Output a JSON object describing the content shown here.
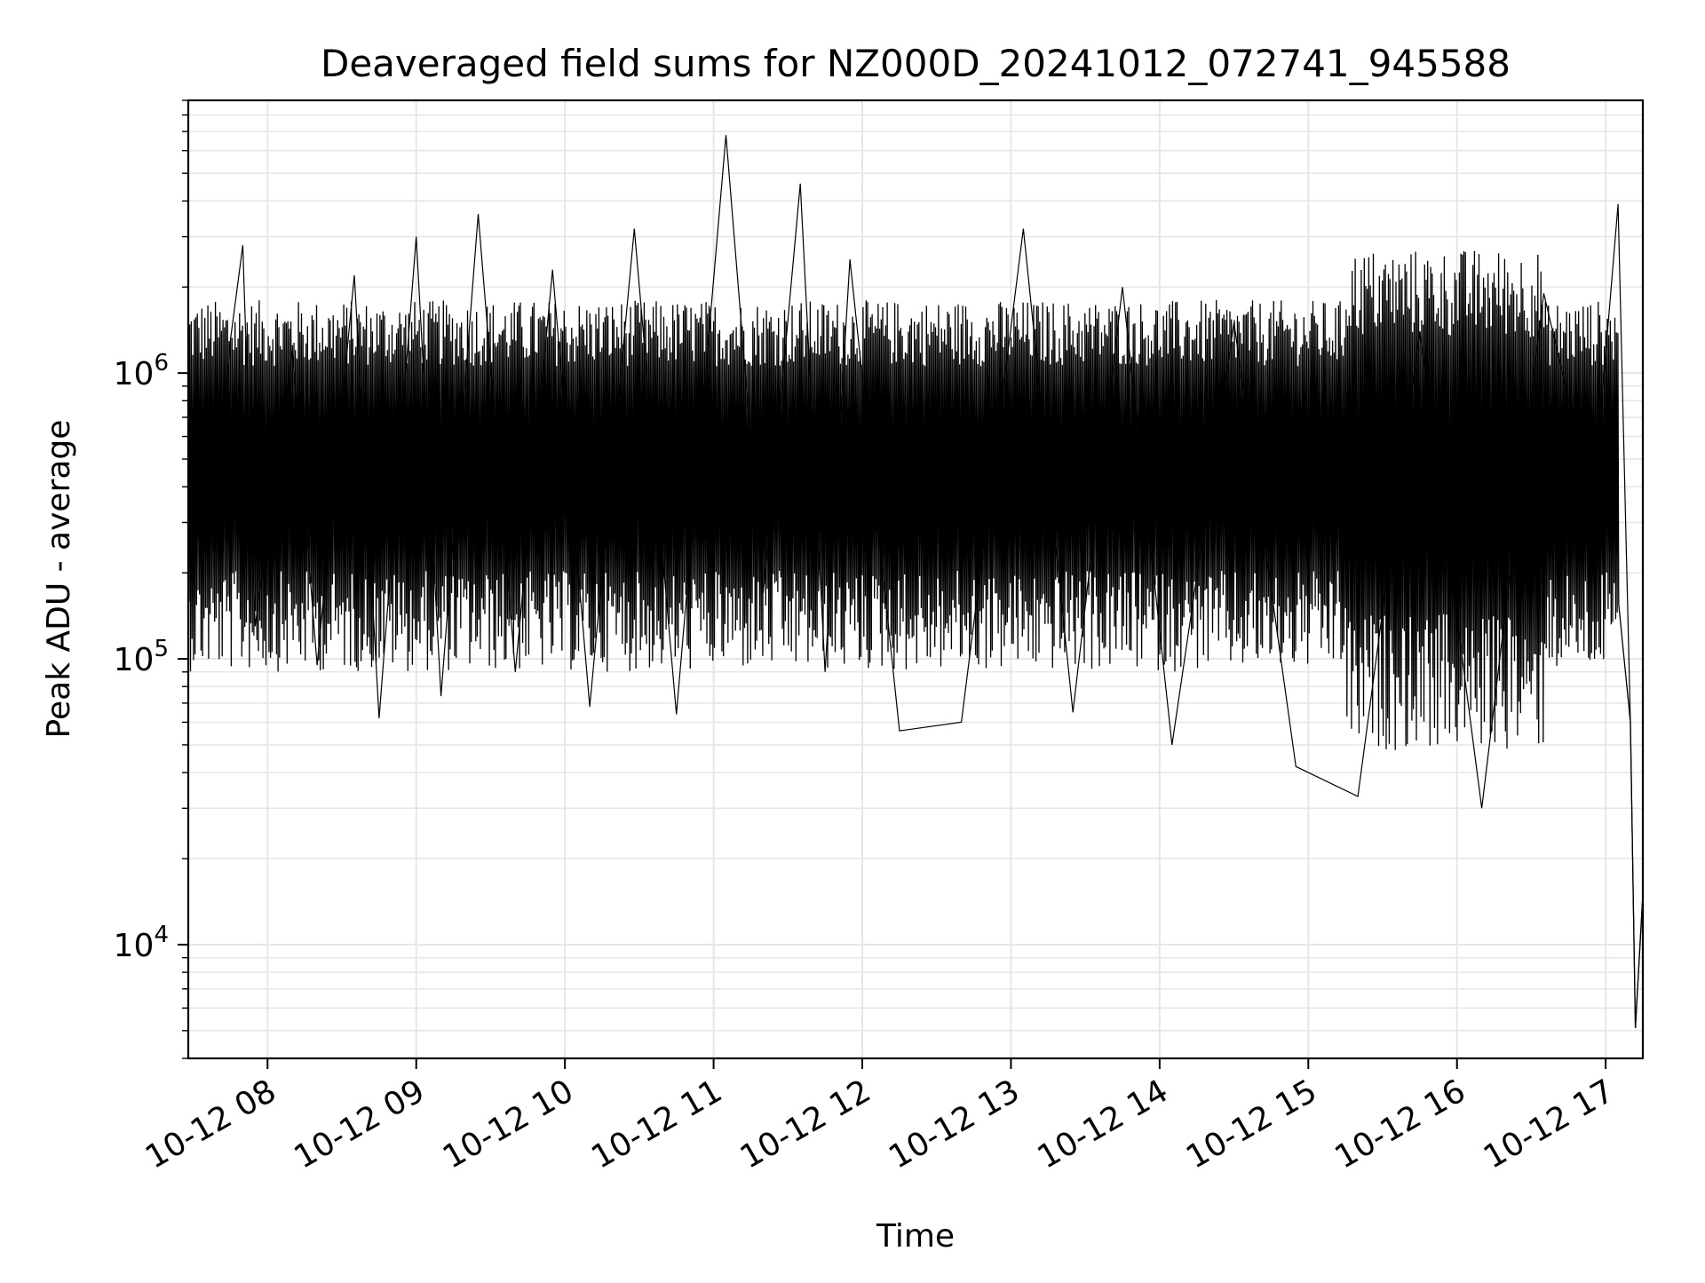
{
  "chart_data": {
    "type": "line",
    "title": "Deaveraged field sums for NZ000D_20241012_072741_945588",
    "xlabel": "Time",
    "ylabel": "Peak ADU - average",
    "y_scale": "log",
    "ylim": [
      4000,
      9000000
    ],
    "xlim": [
      "2024-10-12T07:28:00",
      "2024-10-12T17:15:00"
    ],
    "grid": true,
    "x_ticks": [
      {
        "label": "10-12 08",
        "t": "2024-10-12T08:00:00"
      },
      {
        "label": "10-12 09",
        "t": "2024-10-12T09:00:00"
      },
      {
        "label": "10-12 10",
        "t": "2024-10-12T10:00:00"
      },
      {
        "label": "10-12 11",
        "t": "2024-10-12T11:00:00"
      },
      {
        "label": "10-12 12",
        "t": "2024-10-12T12:00:00"
      },
      {
        "label": "10-12 13",
        "t": "2024-10-12T13:00:00"
      },
      {
        "label": "10-12 14",
        "t": "2024-10-12T14:00:00"
      },
      {
        "label": "10-12 15",
        "t": "2024-10-12T15:00:00"
      },
      {
        "label": "10-12 16",
        "t": "2024-10-12T16:00:00"
      },
      {
        "label": "10-12 17",
        "t": "2024-10-12T17:00:00"
      }
    ],
    "y_ticks": [
      {
        "base": "10",
        "exp": "4",
        "value": 10000
      },
      {
        "base": "10",
        "exp": "5",
        "value": 100000
      },
      {
        "base": "10",
        "exp": "6",
        "value": 1000000
      }
    ],
    "series": [
      {
        "color": "#000000",
        "points": [
          [
            "2024-10-12T07:28:00",
            600000
          ],
          [
            "2024-10-12T07:40:00",
            250000
          ],
          [
            "2024-10-12T07:45:00",
            1300000
          ],
          [
            "2024-10-12T07:50:00",
            2800000
          ],
          [
            "2024-10-12T07:55:00",
            130000
          ],
          [
            "2024-10-12T08:10:00",
            1200000
          ],
          [
            "2024-10-12T08:20:00",
            95000
          ],
          [
            "2024-10-12T08:35:00",
            2200000
          ],
          [
            "2024-10-12T08:45:00",
            62000
          ],
          [
            "2024-10-12T09:00:00",
            3000000
          ],
          [
            "2024-10-12T09:10:00",
            74000
          ],
          [
            "2024-10-12T09:25:00",
            3600000
          ],
          [
            "2024-10-12T09:40:00",
            90000
          ],
          [
            "2024-10-12T09:55:00",
            2300000
          ],
          [
            "2024-10-12T10:10:00",
            68000
          ],
          [
            "2024-10-12T10:28:00",
            3200000
          ],
          [
            "2024-10-12T10:45:00",
            64000
          ],
          [
            "2024-10-12T11:05:00",
            6800000
          ],
          [
            "2024-10-12T11:20:00",
            170000
          ],
          [
            "2024-10-12T11:35:00",
            4600000
          ],
          [
            "2024-10-12T11:45:00",
            90000
          ],
          [
            "2024-10-12T11:55:00",
            2500000
          ],
          [
            "2024-10-12T12:15:00",
            56000
          ],
          [
            "2024-10-12T12:40:00",
            60000
          ],
          [
            "2024-10-12T13:05:00",
            3200000
          ],
          [
            "2024-10-12T13:25:00",
            65000
          ],
          [
            "2024-10-12T13:45:00",
            2000000
          ],
          [
            "2024-10-12T14:05:00",
            50000
          ],
          [
            "2024-10-12T14:30:00",
            1500000
          ],
          [
            "2024-10-12T14:55:00",
            42000
          ],
          [
            "2024-10-12T15:20:00",
            33000
          ],
          [
            "2024-10-12T15:45:00",
            1400000
          ],
          [
            "2024-10-12T16:10:00",
            30000
          ],
          [
            "2024-10-12T16:35:00",
            1900000
          ],
          [
            "2024-10-12T16:55:00",
            350000
          ],
          [
            "2024-10-12T17:05:00",
            3900000
          ],
          [
            "2024-10-12T17:10:00",
            60000
          ],
          [
            "2024-10-12T17:12:00",
            5100
          ],
          [
            "2024-10-12T17:15:00",
            15000
          ]
        ]
      }
    ]
  }
}
